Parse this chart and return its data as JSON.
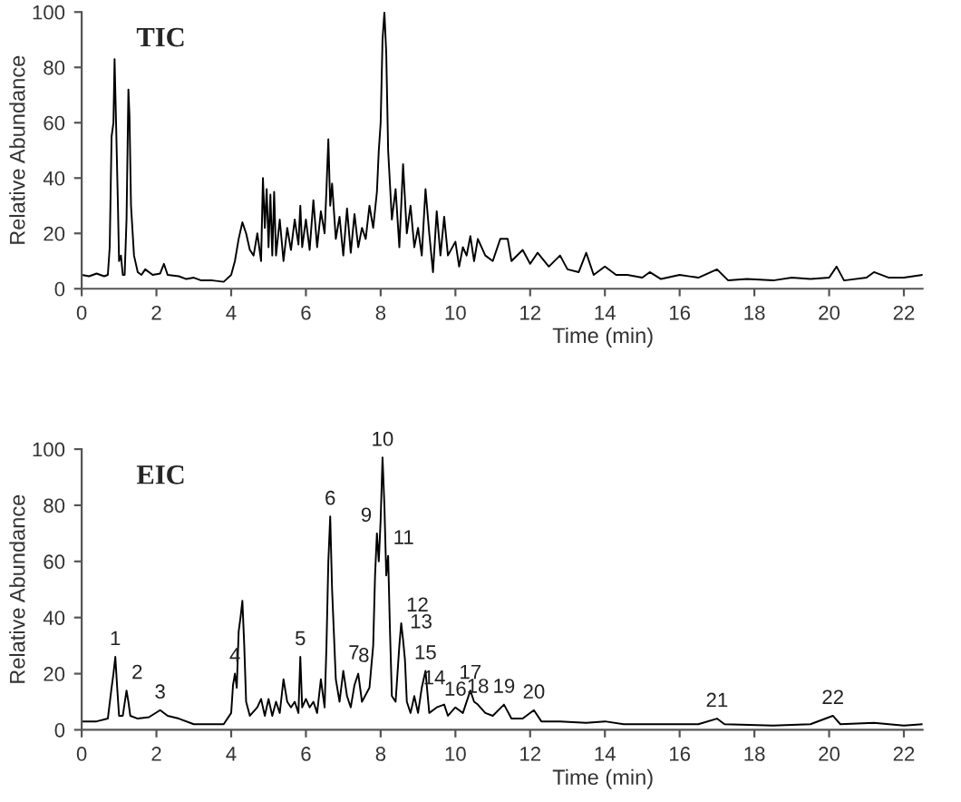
{
  "chart_data": [
    {
      "type": "line",
      "title": "TIC",
      "xlabel": "Time (min)",
      "ylabel": "Relative Abundance",
      "xlim": [
        0,
        22.5
      ],
      "xticks": [
        0,
        2,
        4,
        6,
        8,
        10,
        12,
        14,
        16,
        18,
        20,
        22
      ],
      "ylim": [
        0,
        100
      ],
      "yticks": [
        0,
        20,
        40,
        60,
        80,
        100
      ],
      "grid": false,
      "legend": false,
      "series": [
        {
          "color": "#000000",
          "x": [
            0,
            0.2,
            0.4,
            0.6,
            0.7,
            0.75,
            0.8,
            0.85,
            0.88,
            0.92,
            0.97,
            1.0,
            1.05,
            1.1,
            1.15,
            1.2,
            1.25,
            1.28,
            1.32,
            1.4,
            1.5,
            1.6,
            1.7,
            1.9,
            2.1,
            2.2,
            2.3,
            2.6,
            2.8,
            3.0,
            3.2,
            3.5,
            3.8,
            4.0,
            4.1,
            4.2,
            4.3,
            4.4,
            4.5,
            4.6,
            4.7,
            4.8,
            4.85,
            4.9,
            4.95,
            5.0,
            5.05,
            5.1,
            5.15,
            5.2,
            5.3,
            5.4,
            5.5,
            5.6,
            5.7,
            5.8,
            5.85,
            5.9,
            6.0,
            6.1,
            6.2,
            6.3,
            6.4,
            6.5,
            6.55,
            6.6,
            6.65,
            6.7,
            6.8,
            6.9,
            7.0,
            7.1,
            7.2,
            7.3,
            7.4,
            7.5,
            7.6,
            7.7,
            7.8,
            7.9,
            7.95,
            8.0,
            8.05,
            8.1,
            8.15,
            8.2,
            8.3,
            8.4,
            8.5,
            8.6,
            8.7,
            8.8,
            8.9,
            9.0,
            9.1,
            9.2,
            9.3,
            9.4,
            9.5,
            9.6,
            9.7,
            9.8,
            10.0,
            10.1,
            10.2,
            10.3,
            10.4,
            10.5,
            10.6,
            10.8,
            11.0,
            11.2,
            11.4,
            11.5,
            11.8,
            12.0,
            12.2,
            12.5,
            12.8,
            13.0,
            13.3,
            13.5,
            13.7,
            14.0,
            14.3,
            14.6,
            15.0,
            15.2,
            15.5,
            16.0,
            16.5,
            17.0,
            17.3,
            17.8,
            18.5,
            19.0,
            19.5,
            20.0,
            20.2,
            20.4,
            21.0,
            21.2,
            21.6,
            22.0,
            22.5
          ],
          "values": [
            5,
            4.5,
            5.5,
            4.5,
            5,
            15,
            55,
            60,
            83,
            60,
            30,
            10,
            12,
            5,
            5,
            25,
            72,
            62,
            30,
            12,
            6,
            5,
            7,
            5,
            5.5,
            9,
            5,
            4.5,
            3.5,
            4,
            3,
            3,
            2.5,
            5,
            10,
            18,
            24,
            20,
            14,
            12,
            20,
            10,
            40,
            22,
            36,
            15,
            34,
            12,
            35,
            12,
            25,
            10,
            22,
            14,
            25,
            16,
            30,
            15,
            25,
            14,
            32,
            15,
            28,
            20,
            36,
            54,
            30,
            38,
            18,
            26,
            12,
            29,
            13,
            27,
            15,
            22,
            18,
            30,
            22,
            35,
            50,
            60,
            90,
            100,
            85,
            50,
            25,
            36,
            15,
            45,
            20,
            30,
            15,
            22,
            12,
            36,
            20,
            6,
            28,
            12,
            26,
            12,
            17,
            8,
            15,
            12,
            19,
            10,
            18,
            12,
            10,
            18,
            18,
            10,
            14,
            9,
            13,
            8,
            12,
            7,
            6,
            13,
            5,
            8,
            5,
            5,
            4,
            6,
            3.5,
            5,
            4,
            7,
            3,
            3.5,
            3,
            4,
            3.5,
            4,
            8,
            3,
            4,
            6,
            4,
            4,
            5
          ]
        }
      ]
    },
    {
      "type": "line",
      "title": "EIC",
      "xlabel": "Time (min)",
      "ylabel": "Relative Abundance",
      "xlim": [
        0,
        22.5
      ],
      "xticks": [
        0,
        2,
        4,
        6,
        8,
        10,
        12,
        14,
        16,
        18,
        20,
        22
      ],
      "ylim": [
        0,
        100
      ],
      "yticks": [
        0,
        20,
        40,
        60,
        80,
        100
      ],
      "grid": false,
      "legend": false,
      "series": [
        {
          "color": "#000000",
          "x": [
            0,
            0.4,
            0.7,
            0.8,
            0.85,
            0.9,
            0.95,
            1.0,
            1.1,
            1.2,
            1.25,
            1.3,
            1.5,
            1.8,
            2.1,
            2.3,
            2.6,
            3.0,
            3.5,
            3.8,
            4.0,
            4.05,
            4.1,
            4.15,
            4.2,
            4.25,
            4.3,
            4.35,
            4.4,
            4.5,
            4.7,
            4.8,
            4.9,
            5.0,
            5.1,
            5.2,
            5.3,
            5.4,
            5.5,
            5.6,
            5.7,
            5.8,
            5.85,
            5.9,
            6.0,
            6.1,
            6.2,
            6.3,
            6.4,
            6.5,
            6.55,
            6.6,
            6.65,
            6.7,
            6.8,
            6.9,
            7.0,
            7.1,
            7.2,
            7.3,
            7.4,
            7.5,
            7.7,
            7.8,
            7.85,
            7.9,
            7.95,
            8.0,
            8.05,
            8.1,
            8.15,
            8.2,
            8.25,
            8.3,
            8.4,
            8.5,
            8.55,
            8.6,
            8.65,
            8.7,
            8.8,
            8.9,
            9.0,
            9.1,
            9.2,
            9.3,
            9.5,
            9.7,
            9.8,
            10.0,
            10.2,
            10.4,
            10.5,
            10.6,
            10.8,
            11.0,
            11.3,
            11.5,
            11.8,
            12.1,
            12.3,
            12.8,
            13.5,
            14.0,
            14.5,
            15.5,
            16.5,
            17.0,
            17.2,
            18.5,
            19.5,
            20.1,
            20.3,
            21.2,
            22.0,
            22.5
          ],
          "values": [
            3,
            3,
            4,
            15,
            20,
            26,
            15,
            5,
            5,
            14,
            10,
            5,
            4,
            4.5,
            7,
            5,
            4,
            2,
            2,
            2,
            6,
            16,
            20,
            15,
            35,
            40,
            46,
            30,
            10,
            5,
            8,
            11,
            5,
            11,
            5,
            10,
            6,
            18,
            10,
            8,
            10,
            6,
            26,
            8,
            11,
            8,
            10,
            6,
            18,
            8,
            30,
            60,
            76,
            50,
            18,
            10,
            21,
            12,
            8,
            16,
            20,
            10,
            15,
            30,
            55,
            70,
            60,
            75,
            97,
            80,
            55,
            62,
            35,
            12,
            10,
            30,
            38,
            32,
            25,
            10,
            6,
            12,
            6,
            15,
            21,
            6,
            8,
            9,
            5,
            8,
            6,
            14,
            10,
            9,
            6,
            5,
            9,
            4,
            4,
            7,
            3,
            3,
            2.5,
            3,
            2,
            2,
            2,
            4,
            2,
            1.5,
            2,
            5,
            2,
            2.5,
            1.5,
            2
          ]
        }
      ],
      "annotations": [
        {
          "text": "1",
          "x": 0.9,
          "y": 26
        },
        {
          "text": "2",
          "x": 1.2,
          "y": 14
        },
        {
          "text": "3",
          "x": 2.1,
          "y": 7
        },
        {
          "text": "4",
          "x": 4.1,
          "y": 20
        },
        {
          "text": "5",
          "x": 5.85,
          "y": 26
        },
        {
          "text": "6",
          "x": 6.65,
          "y": 76
        },
        {
          "text": "7",
          "x": 7.0,
          "y": 21
        },
        {
          "text": "8",
          "x": 7.4,
          "y": 20
        },
        {
          "text": "9",
          "x": 7.9,
          "y": 70
        },
        {
          "text": "10",
          "x": 8.05,
          "y": 97
        },
        {
          "text": "11",
          "x": 8.2,
          "y": 62
        },
        {
          "text": "12",
          "x": 8.55,
          "y": 38
        },
        {
          "text": "13",
          "x": 8.65,
          "y": 32
        },
        {
          "text": "14",
          "x": 9.0,
          "y": 12
        },
        {
          "text": "15",
          "x": 9.2,
          "y": 21
        },
        {
          "text": "16",
          "x": 10.0,
          "y": 8
        },
        {
          "text": "17",
          "x": 10.4,
          "y": 14
        },
        {
          "text": "18",
          "x": 10.6,
          "y": 9
        },
        {
          "text": "19",
          "x": 11.3,
          "y": 9
        },
        {
          "text": "20",
          "x": 12.1,
          "y": 7
        },
        {
          "text": "21",
          "x": 17.0,
          "y": 4
        },
        {
          "text": "22",
          "x": 20.1,
          "y": 5
        }
      ]
    }
  ]
}
